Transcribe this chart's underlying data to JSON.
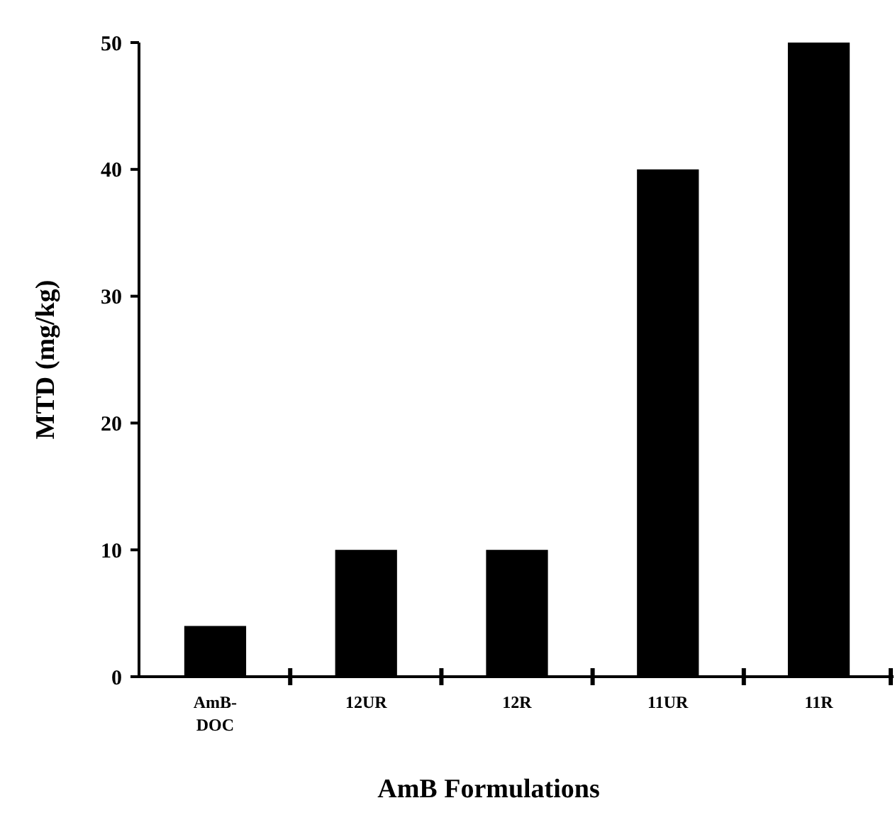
{
  "chart_data": {
    "type": "bar",
    "xlabel": "AmB Formulations",
    "ylabel": "MTD (mg/kg)",
    "categories": [
      "AmB-DOC",
      "12UR",
      "12R",
      "11UR",
      "11R"
    ],
    "values": [
      4,
      10,
      10,
      40,
      50
    ],
    "color": "#000000",
    "ylim": [
      0,
      50
    ],
    "yticks": [
      0,
      10,
      20,
      30,
      40,
      50
    ],
    "grid": false
  }
}
